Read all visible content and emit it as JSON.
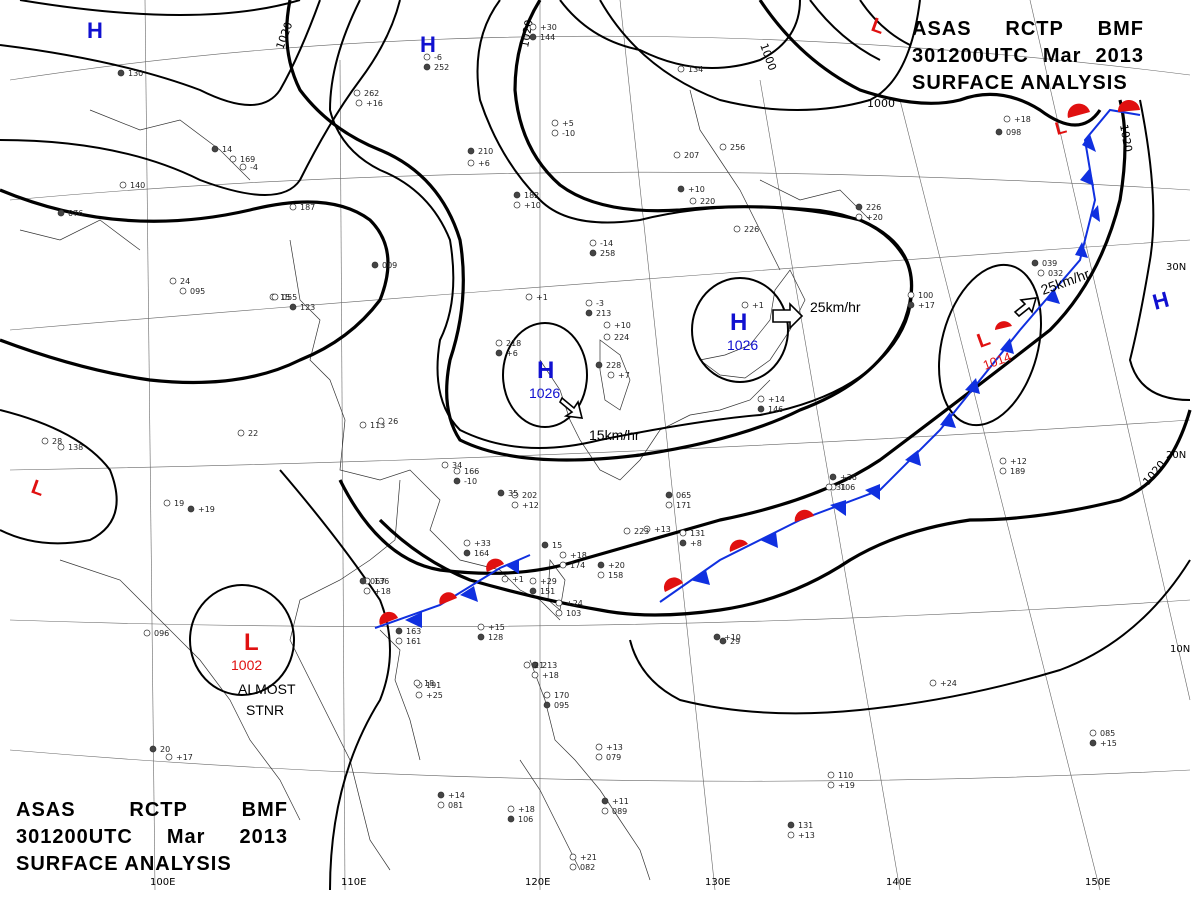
{
  "header": {
    "line1": [
      "ASAS",
      "RCTP",
      "BMF"
    ],
    "line2": [
      "301200UTC",
      "Mar",
      "2013"
    ],
    "line3": "SURFACE ANALYSIS"
  },
  "lon_labels": [
    "100E",
    "110E",
    "120E",
    "130E",
    "140E",
    "150E"
  ],
  "lat_labels": [
    "30N",
    "20N",
    "10N"
  ],
  "isobar_labels": [
    "1020",
    "1020",
    "1000",
    "1000",
    "1020",
    "1020"
  ],
  "pressure_centers": [
    {
      "type": "H",
      "value": "1026",
      "color": "#1010d0"
    },
    {
      "type": "H",
      "value": "1026",
      "color": "#1010d0"
    },
    {
      "type": "L",
      "value": "1002",
      "color": "#e01010"
    },
    {
      "type": "L",
      "value": "1014",
      "color": "#e01010"
    },
    {
      "type": "H",
      "value": "",
      "color": "#1010d0"
    },
    {
      "type": "H",
      "value": "",
      "color": "#1010d0"
    },
    {
      "type": "H",
      "value": "",
      "color": "#1010d0"
    },
    {
      "type": "L",
      "value": "",
      "color": "#e01010"
    },
    {
      "type": "L",
      "value": "",
      "color": "#e01010"
    },
    {
      "type": "L",
      "value": "",
      "color": "#e01010"
    }
  ],
  "motion_labels": [
    "25km/hr",
    "15km/hr",
    "25km/hr"
  ],
  "status_labels": [
    "ALMOST",
    "STNR"
  ],
  "station_obs": [
    "130",
    "262",
    "+16",
    "14",
    "169",
    "-4",
    "210",
    "+6",
    "140",
    "076",
    "187",
    "113",
    "009",
    "24",
    "095",
    "123",
    "15",
    "-6",
    "252",
    "+5",
    "-10",
    "182",
    "+10",
    "-14",
    "258",
    "+1",
    "-3",
    "213",
    "+10",
    "224",
    "228",
    "+7",
    "218",
    "+6",
    "226",
    "+1",
    "226",
    "+20",
    "100",
    "+17",
    "256",
    "207",
    "+10",
    "220",
    "+30",
    "144",
    "134",
    "166",
    "-10",
    "202",
    "+12",
    "065",
    "171",
    "+33",
    "164",
    "+18",
    "174",
    "+20",
    "158",
    "+29",
    "151",
    "+13",
    "131",
    "+8",
    "136",
    "+18",
    "163",
    "161",
    "+15",
    "128",
    "+24",
    "103",
    "+26",
    "106",
    "+14",
    "146",
    "+12",
    "189",
    "+10",
    "191",
    "+25",
    "213",
    "+18",
    "170",
    "095",
    "+13",
    "079",
    "+14",
    "081",
    "+18",
    "106",
    "+21",
    "082",
    "+11",
    "089",
    "+18",
    "098",
    "+24",
    "085",
    "+15",
    "110",
    "+19",
    "131",
    "+13",
    "138",
    "+19",
    "096",
    "+17",
    "039",
    "032",
    "055",
    "067",
    "223",
    "+1",
    "15",
    "18",
    "21",
    "20",
    "19",
    "28",
    "29",
    "31",
    "34",
    "35",
    "26",
    "22",
    "17",
    "16",
    "113",
    "+10"
  ]
}
